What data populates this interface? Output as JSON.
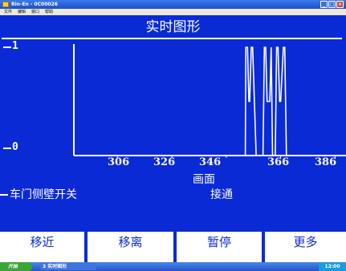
{
  "window": {
    "title": "Rin-En - 0C00026",
    "buttons": [
      "_",
      "□",
      "×"
    ]
  },
  "menu": {
    "items": [
      "文件",
      "编辑",
      "窗口",
      "帮助"
    ]
  },
  "header": {
    "title": "实时图形"
  },
  "chart_data": {
    "type": "line",
    "title": "实时图形",
    "xlabel": "画面",
    "ylabel": "",
    "x_ticks": [
      "306",
      "326",
      "346",
      "366",
      "386"
    ],
    "y_ticks": [
      "1",
      "0"
    ],
    "xlim": [
      290,
      390
    ],
    "ylim": [
      0,
      1
    ],
    "grid": false,
    "series": [
      {
        "name": "车门侧壁开关",
        "x": [
          290,
          353,
          353.2,
          353.8,
          354.3,
          354.6,
          355.2,
          355.7,
          357,
          359.5,
          360.0,
          360.5,
          361,
          362,
          362.5,
          363,
          364,
          364.5,
          365.0,
          365.6,
          366,
          367,
          367.5,
          368.1,
          368.5,
          390
        ],
        "values": [
          0,
          0,
          1,
          1,
          0.5,
          0.5,
          1,
          1,
          0,
          0,
          1,
          1,
          0.5,
          0.5,
          1,
          0,
          0,
          1,
          1,
          0.5,
          0.5,
          1,
          1,
          0,
          0,
          0
        ]
      }
    ]
  },
  "signal": {
    "label": "车门侧壁开关",
    "value": "接通"
  },
  "buttons": [
    "移近",
    "移离",
    "暂停",
    "更多"
  ],
  "taskbar": {
    "start": "开始",
    "task": "3 实时图形",
    "tray": "12:00"
  },
  "colors": {
    "background": "#0a2ad6",
    "trace": "#ffffff",
    "button_bg": "#ffffff",
    "button_text": "#0a2ad6"
  }
}
